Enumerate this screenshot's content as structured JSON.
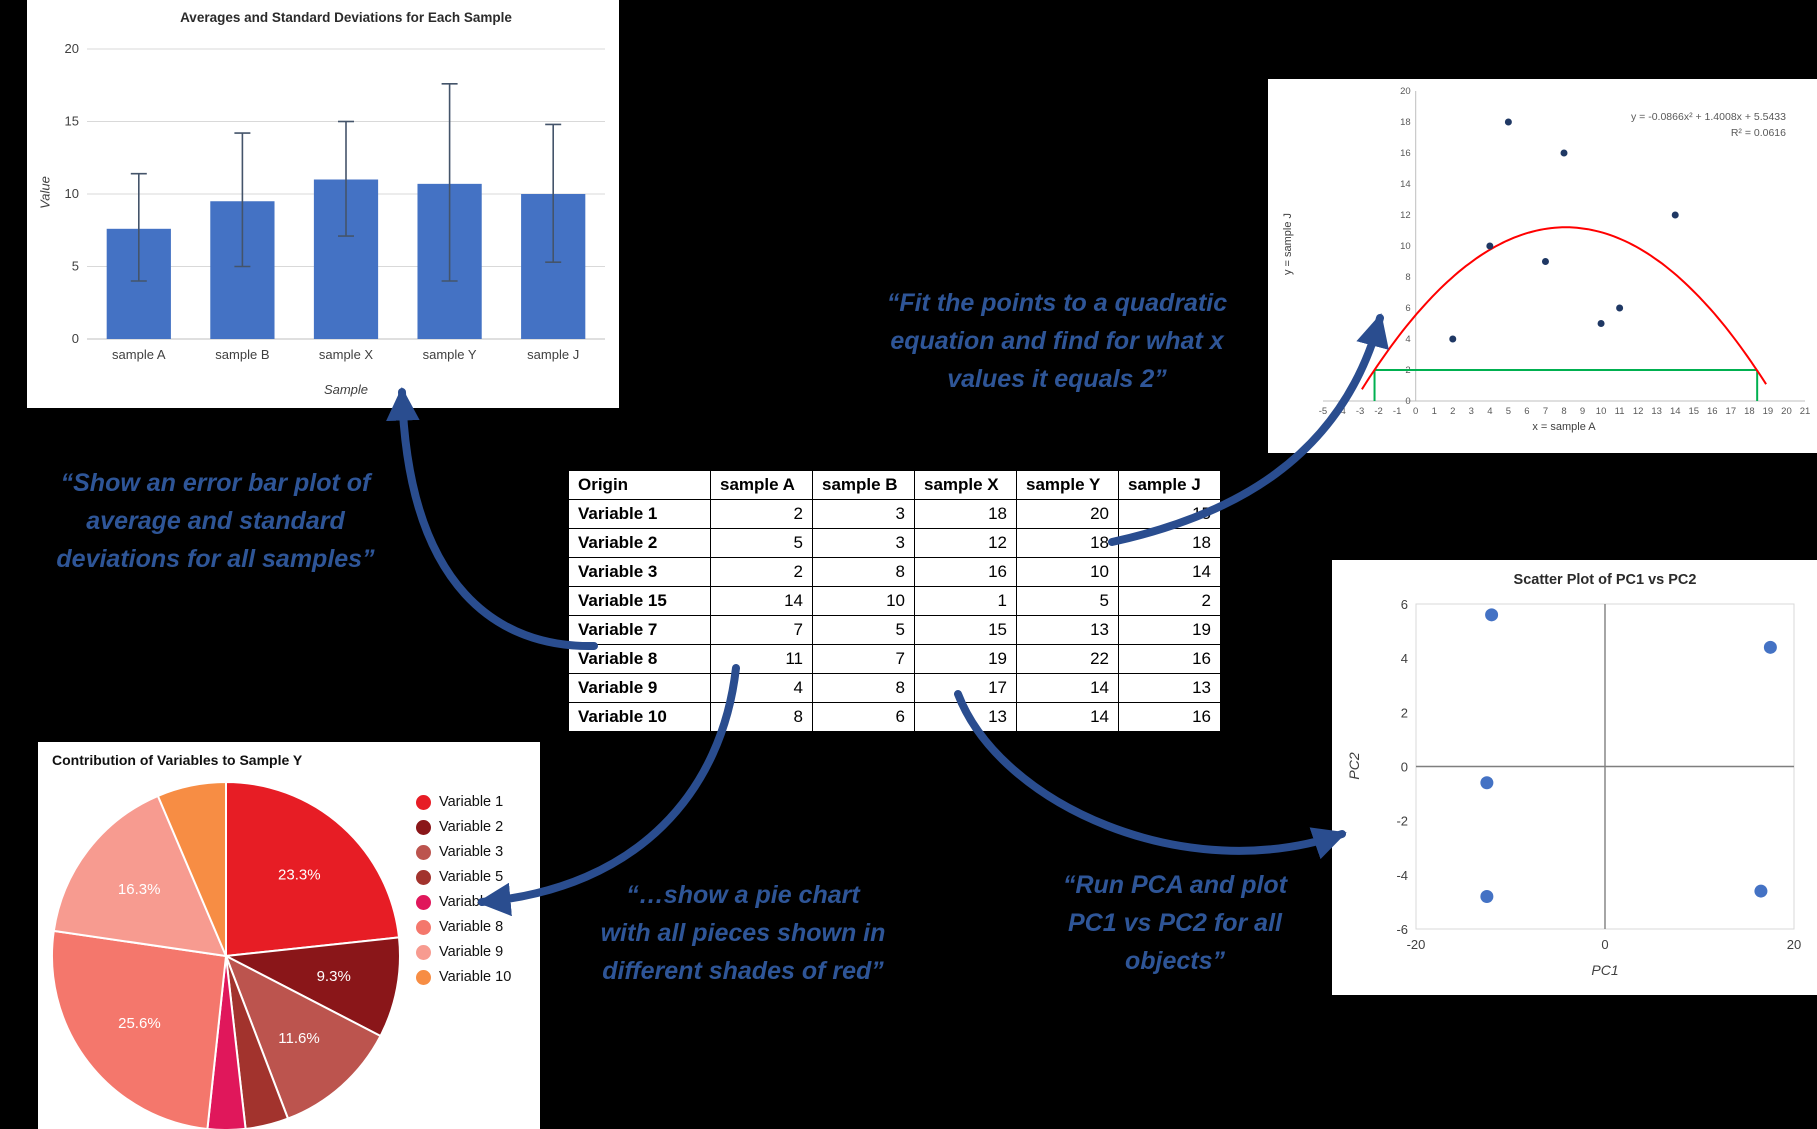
{
  "colors": {
    "background": "#000000",
    "annotation_text": "#2e5597",
    "arrow": "#2a4d8f",
    "bar_fill": "#4472c4",
    "error_bar": "#44546a",
    "scatter_dot": "#1f3864",
    "fit_curve": "#ff0000",
    "target_line": "#00b050",
    "pca_dot": "#4472c4",
    "axis_text": "#595959"
  },
  "chart_data": [
    {
      "id": "error_bar_chart",
      "type": "bar",
      "title": "Averages and Standard Deviations for Each Sample",
      "xlabel": "Sample",
      "ylabel": "Value",
      "categories": [
        "sample A",
        "sample B",
        "sample X",
        "sample Y",
        "sample J"
      ],
      "means": [
        7.6,
        9.5,
        11.0,
        10.7,
        10.0
      ],
      "error_low": [
        4.0,
        5.0,
        7.1,
        4.0,
        5.3
      ],
      "error_high": [
        11.4,
        14.2,
        15.0,
        17.6,
        14.8
      ],
      "ylim": [
        0,
        20
      ],
      "yticks": [
        0,
        5,
        10,
        15,
        20
      ],
      "grid": true,
      "legend": "none"
    },
    {
      "id": "quadratic_fit_chart",
      "type": "scatter",
      "equation_label": "y = -0.0866x² + 1.4008x + 5.5433",
      "r_squared_label": "R² = 0.0616",
      "xlabel": "x = sample A",
      "ylabel": "y = sample J",
      "points": [
        [
          2,
          4
        ],
        [
          4,
          10
        ],
        [
          5,
          18
        ],
        [
          7,
          9
        ],
        [
          8,
          16
        ],
        [
          10,
          5
        ],
        [
          11,
          6
        ],
        [
          14,
          12
        ]
      ],
      "fit": {
        "a": -0.0866,
        "b": 1.4008,
        "c": 5.5433
      },
      "target_y": 2,
      "roots": [
        -2.22,
        18.42
      ],
      "xlim": [
        -5,
        21
      ],
      "ylim": [
        0,
        20
      ],
      "xtick_step": 1,
      "ytick_step": 2,
      "grid": false,
      "legend": "none"
    },
    {
      "id": "data_table",
      "type": "table",
      "headers": [
        "Origin",
        "sample A",
        "sample B",
        "sample X",
        "sample Y",
        "sample J"
      ],
      "rows": [
        {
          "label": "Variable 1",
          "values": [
            2,
            3,
            18,
            20,
            15
          ]
        },
        {
          "label": "Variable 2",
          "values": [
            5,
            3,
            12,
            18,
            18
          ]
        },
        {
          "label": "Variable 3",
          "values": [
            2,
            8,
            16,
            10,
            14
          ]
        },
        {
          "label": "Variable 15",
          "values": [
            14,
            10,
            1,
            5,
            2
          ]
        },
        {
          "label": "Variable 7",
          "values": [
            7,
            5,
            15,
            13,
            19
          ]
        },
        {
          "label": "Variable 8",
          "values": [
            11,
            7,
            19,
            22,
            16
          ]
        },
        {
          "label": "Variable 9",
          "values": [
            4,
            8,
            17,
            14,
            13
          ]
        },
        {
          "label": "Variable 10",
          "values": [
            8,
            6,
            13,
            14,
            16
          ]
        }
      ]
    },
    {
      "id": "pie_chart",
      "type": "pie",
      "title": "Contribution of Variables to Sample Y",
      "slices": [
        {
          "label": "Variable 1",
          "pct": 23.3,
          "color": "#e71d25"
        },
        {
          "label": "Variable 2",
          "pct": 9.3,
          "color": "#8a1619"
        },
        {
          "label": "Variable 3",
          "pct": 11.6,
          "color": "#bc544e"
        },
        {
          "label": "Variable 5",
          "pct": 4.0,
          "color": "#a2332d"
        },
        {
          "label": "Variable 7",
          "pct": 3.5,
          "color": "#e0175b"
        },
        {
          "label": "Variable 8",
          "pct": 25.6,
          "color": "#f4776c"
        },
        {
          "label": "Variable 9",
          "pct": 16.3,
          "color": "#f79b90"
        },
        {
          "label": "Variable 10",
          "pct": 6.4,
          "color": "#f78d44"
        }
      ],
      "label_threshold_pct": 8,
      "legend": "right"
    },
    {
      "id": "pca_chart",
      "type": "scatter",
      "title": "Scatter Plot of PC1 vs PC2",
      "xlabel": "PC1",
      "ylabel": "PC2",
      "points": [
        [
          -12,
          5.6
        ],
        [
          17.5,
          4.4
        ],
        [
          -12.5,
          -0.6
        ],
        [
          -12.5,
          -4.8
        ],
        [
          16.5,
          -4.6
        ]
      ],
      "xlim": [
        -20,
        20
      ],
      "ylim": [
        -6,
        6
      ],
      "xticks": [
        -20,
        0,
        20
      ],
      "yticks": [
        -6,
        -4,
        -2,
        0,
        2,
        4,
        6
      ],
      "grid": false,
      "legend": "none"
    }
  ],
  "annotations": {
    "error_bar_note": "“Show an error bar plot of\naverage and standard\ndeviations for all samples”",
    "quadratic_note": "“Fit the points to a quadratic\nequation and find for what x\nvalues it equals 2”",
    "pie_note": "“…show a pie chart\nwith all pieces shown in\ndifferent shades of red”",
    "pca_note": "“Run PCA and plot\nPC1 vs PC2 for all\nobjects”"
  }
}
